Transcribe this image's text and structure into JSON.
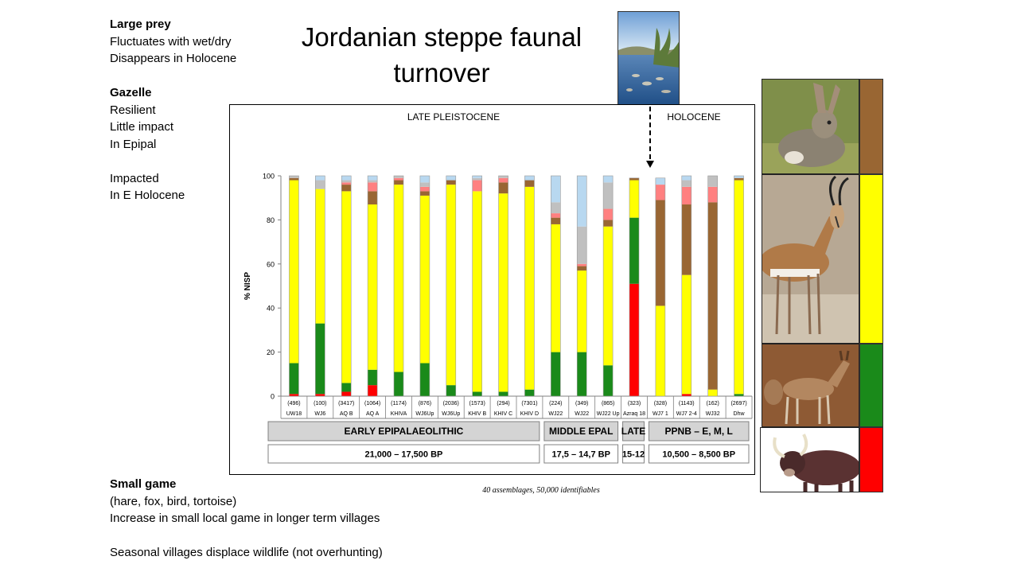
{
  "title": "Jordanian steppe faunal turnover",
  "notes_top": [
    {
      "text": "Large prey",
      "bold": true
    },
    {
      "text": "Fluctuates with wet/dry",
      "bold": false
    },
    {
      "text": "Disappears in Holocene",
      "bold": false
    },
    {
      "text": "",
      "bold": false
    },
    {
      "text": "Gazelle",
      "bold": true
    },
    {
      "text": "Resilient",
      "bold": false
    },
    {
      "text": "Little impact",
      "bold": false
    },
    {
      "text": "In Epipal",
      "bold": false
    },
    {
      "text": "",
      "bold": false
    },
    {
      "text": "Impacted",
      "bold": false
    },
    {
      "text": "In E Holocene",
      "bold": false
    }
  ],
  "notes_bottom": [
    {
      "text": "Small game",
      "bold": true
    },
    {
      "text": "(hare, fox, bird, tortoise)",
      "bold": false
    },
    {
      "text": "Increase in small local game in longer term villages",
      "bold": false
    },
    {
      "text": "",
      "bold": false
    },
    {
      "text": "Seasonal villages displace wildlife (not overhunting)",
      "bold": false
    }
  ],
  "caption": "40 assemblages, 50,000 identifiables",
  "colors": {
    "red": "#ff0000",
    "green": "#1a8a1a",
    "yellow": "#ffff00",
    "brown": "#996633",
    "pink": "#ff8080",
    "grey": "#c0c0c0",
    "lightblue": "#b8d8f0",
    "gray-outline": "#999999"
  },
  "legend_swatches": [
    "brown",
    "yellow",
    "green",
    "red"
  ],
  "chart_data": {
    "type": "bar",
    "stacked": true,
    "ylabel": "% NISP",
    "ylim": [
      0,
      100
    ],
    "yticks": [
      0,
      20,
      40,
      60,
      80,
      100
    ],
    "period_labels": [
      "LATE PLEISTOCENE",
      "HOLOCENE"
    ],
    "categories": [
      "UW18",
      "WJ6",
      "AQ B",
      "AQ A",
      "KHIVA",
      "WJ6Up",
      "WJ6Up",
      "KHIV B",
      "KHIV C",
      "KHIV D",
      "WJ22",
      "WJ22",
      "WJ22 Up",
      "Azraq 18",
      "WJ7  1",
      "WJ7 2-4",
      "WJ32",
      "Dhw"
    ],
    "counts": [
      "(496)",
      "(100)",
      "(3417)",
      "(1064)",
      "(1174)",
      "(876)",
      "(2036)",
      "(1573)",
      "(294)",
      "(7301)",
      "(224)",
      "(349)",
      "(865)",
      "(323)",
      "(328)",
      "(1143)",
      "(162)",
      "(2697)"
    ],
    "series": [
      {
        "color_key": "red",
        "values": [
          1,
          1,
          2,
          5,
          0,
          0,
          0,
          0,
          0,
          0,
          0,
          0,
          0,
          51,
          0,
          1,
          0,
          0
        ]
      },
      {
        "color_key": "green",
        "values": [
          14,
          32,
          4,
          7,
          11,
          15,
          5,
          2,
          2,
          3,
          20,
          20,
          14,
          30,
          0,
          0,
          0,
          1
        ]
      },
      {
        "color_key": "yellow",
        "values": [
          83,
          61,
          87,
          75,
          85,
          76,
          91,
          91,
          90,
          92,
          58,
          37,
          63,
          17,
          41,
          54,
          3,
          97
        ]
      },
      {
        "color_key": "brown",
        "values": [
          1,
          0,
          3,
          6,
          2,
          2,
          2,
          0,
          5,
          3,
          3,
          2,
          3,
          1,
          48,
          32,
          85,
          1
        ]
      },
      {
        "color_key": "pink",
        "values": [
          0,
          0,
          1,
          4,
          1,
          2,
          0,
          5,
          2,
          0,
          2,
          1,
          5,
          0,
          7,
          8,
          7,
          0
        ]
      },
      {
        "color_key": "grey",
        "values": [
          1,
          4,
          1,
          1,
          1,
          2,
          0,
          1,
          1,
          0,
          5,
          17,
          12,
          0,
          0,
          3,
          5,
          0
        ]
      },
      {
        "color_key": "lightblue",
        "values": [
          0,
          2,
          2,
          2,
          0,
          3,
          2,
          1,
          0,
          2,
          12,
          23,
          3,
          0,
          3,
          2,
          0,
          1
        ]
      }
    ],
    "period_boxes": [
      {
        "label": "EARLY EPIPALAEOLITHIC",
        "dates": "21,000 – 17,500 BP",
        "from": 0,
        "to": 9
      },
      {
        "label": "MIDDLE EPAL",
        "dates": "17,5 – 14,7 BP",
        "from": 10,
        "to": 12
      },
      {
        "label": "LATE",
        "dates": "15-12",
        "from": 13,
        "to": 13
      },
      {
        "label": "PPNB – E, M, L",
        "dates": "10,500 – 8,500 BP",
        "from": 14,
        "to": 17
      }
    ]
  }
}
